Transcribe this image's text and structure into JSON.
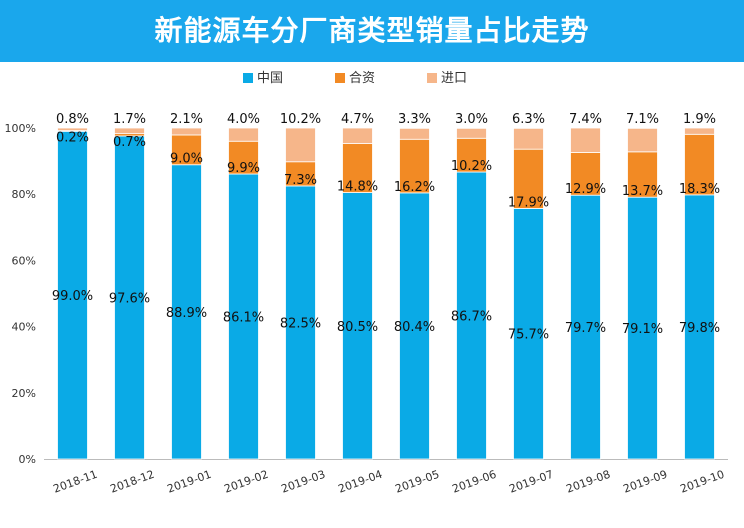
{
  "title": "新能源车分厂商类型销量占比走势",
  "colors": {
    "header": "#1aa7ec",
    "中国": "#0aaae6",
    "合资": "#f28a24",
    "进口": "#f6b68a"
  },
  "chart_data": {
    "type": "bar",
    "stacked": true,
    "title": "新能源车分厂商类型销量占比走势",
    "categories": [
      "2018-11",
      "2018-12",
      "2019-01",
      "2019-02",
      "2019-03",
      "2019-04",
      "2019-05",
      "2019-06",
      "2019-07",
      "2019-08",
      "2019-09",
      "2019-10"
    ],
    "series": [
      {
        "name": "中国",
        "values": [
          99.0,
          97.6,
          88.9,
          86.1,
          82.5,
          80.5,
          80.4,
          86.7,
          75.7,
          79.7,
          79.1,
          79.8
        ],
        "labels": [
          "99.0%",
          "97.6%",
          "88.9%",
          "86.1%",
          "82.5%",
          "80.5%",
          "80.4%",
          "86.7%",
          "75.7%",
          "79.7%",
          "79.1%",
          "79.8%"
        ]
      },
      {
        "name": "合资",
        "values": [
          0.2,
          0.7,
          9.0,
          9.9,
          7.3,
          14.8,
          16.2,
          10.2,
          17.9,
          12.9,
          13.7,
          18.3
        ],
        "labels": [
          "0.2%",
          "0.7%",
          "9.0%",
          "9.9%",
          "7.3%",
          "14.8%",
          "16.2%",
          "10.2%",
          "17.9%",
          "12.9%",
          "13.7%",
          "18.3%"
        ]
      },
      {
        "name": "进口",
        "values": [
          0.8,
          1.7,
          2.1,
          4.0,
          10.2,
          4.7,
          3.3,
          3.0,
          6.3,
          7.4,
          7.1,
          1.9
        ],
        "labels": [
          "0.8%",
          "1.7%",
          "2.1%",
          "4.0%",
          "10.2%",
          "4.7%",
          "3.3%",
          "3.0%",
          "6.3%",
          "7.4%",
          "7.1%",
          "1.9%"
        ]
      }
    ],
    "ylim": [
      0,
      100
    ],
    "yticks": [
      "0%",
      "20%",
      "40%",
      "60%",
      "80%",
      "100%"
    ],
    "legend": "top-center",
    "grid": false
  }
}
